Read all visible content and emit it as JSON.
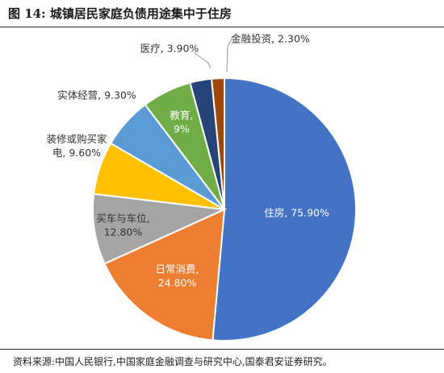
{
  "figure": {
    "title": "图 14:  城镇居民家庭负债用途集中于住房",
    "source": "资料来源:中国人民银行,中国家庭金融调查与研究中心,国泰君安证券研究。"
  },
  "chart_data": {
    "type": "pie",
    "title": "",
    "start_angle_deg": 0,
    "direction": "clockwise",
    "slices": [
      {
        "name": "住房",
        "value": 75.9,
        "label_lines": [
          "住房, 75.90%"
        ],
        "color": "#4472C4",
        "label_color": "#ffffff",
        "label_inside": true
      },
      {
        "name": "日常消费",
        "value": 24.8,
        "label_lines": [
          "日常消费,",
          "24.80%"
        ],
        "color": "#ED7D31",
        "label_color": "#ffffff",
        "label_inside": true
      },
      {
        "name": "买车与车位",
        "value": 12.8,
        "label_lines": [
          "买车与车位,",
          "12.80%"
        ],
        "color": "#A5A5A5",
        "label_color": "#333333",
        "label_inside": true
      },
      {
        "name": "装修或购买家电",
        "value": 9.6,
        "label_lines": [
          "装修或购买家",
          "电, 9.60%"
        ],
        "color": "#FFC000",
        "label_color": "#333333",
        "label_inside": false
      },
      {
        "name": "实体经营",
        "value": 9.3,
        "label_lines": [
          "实体经营, 9.30%"
        ],
        "color": "#5B9BD5",
        "label_color": "#333333",
        "label_inside": false
      },
      {
        "name": "教育",
        "value": 9,
        "label_lines": [
          "教育,",
          "9%"
        ],
        "color": "#70AD47",
        "label_color": "#ffffff",
        "label_inside": true
      },
      {
        "name": "医疗",
        "value": 3.9,
        "label_lines": [
          "医疗, 3.90%"
        ],
        "color": "#264478",
        "label_color": "#333333",
        "label_inside": false
      },
      {
        "name": "金融投资",
        "value": 2.3,
        "label_lines": [
          "金融投资, 2.30%"
        ],
        "color": "#9E480E",
        "label_color": "#333333",
        "label_inside": false
      }
    ]
  }
}
